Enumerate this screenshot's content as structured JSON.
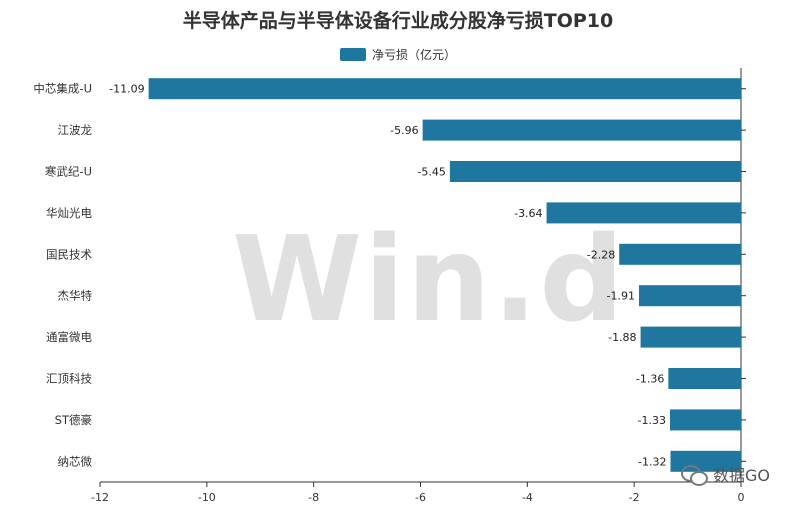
{
  "chart_data": {
    "type": "bar",
    "orientation": "horizontal",
    "title": "半导体产品与半导体设备行业成分股净亏损TOP10",
    "legend": {
      "label": "净亏损（亿元）",
      "placement": "top-center"
    },
    "categories": [
      "中芯集成-U",
      "江波龙",
      "寒武纪-U",
      "华灿光电",
      "国民技术",
      "杰华特",
      "通富微电",
      "汇顶科技",
      "ST德豪",
      "纳芯微"
    ],
    "values": [
      -11.09,
      -5.96,
      -5.45,
      -3.64,
      -2.28,
      -1.91,
      -1.88,
      -1.36,
      -1.33,
      -1.32
    ],
    "value_labels": [
      "-11.09",
      "-5.96",
      "-5.45",
      "-3.64",
      "-2.28",
      "-1.91",
      "-1.88",
      "-1.36",
      "-1.33",
      "-1.32"
    ],
    "xlim": [
      -12,
      0
    ],
    "x_ticks": [
      -12,
      -10,
      -8,
      -6,
      -4,
      -2,
      0
    ],
    "grid": false,
    "bar_color": "#1f77a0"
  },
  "watermark": "Win.d",
  "brand": "数据GO"
}
